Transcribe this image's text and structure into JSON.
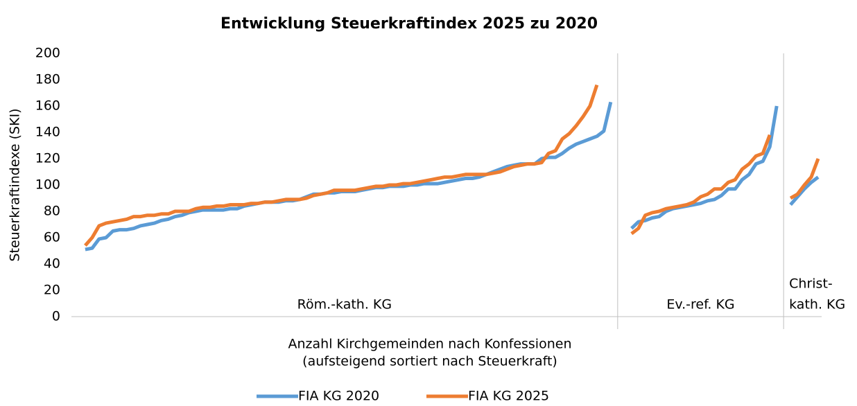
{
  "chart_data": {
    "type": "line",
    "title": "Entwicklung Steuerkraftindex 2025 zu 2020",
    "y_label": "Steuerkraftindexe (SKI)",
    "x_label": [
      "Anzahl Kirchgemeinden nach Konfessionen",
      "(aufsteigend sortiert nach Steuerkraft)"
    ],
    "ylim": [
      0,
      200
    ],
    "yticks": [
      0,
      20,
      40,
      60,
      80,
      100,
      120,
      140,
      160,
      180,
      200
    ],
    "xlim": [
      0,
      108.5
    ],
    "grid": false,
    "legend": "bottom",
    "groups": [
      {
        "label": [
          "Röm.-kath. KG"
        ],
        "range": [
          0,
          79
        ]
      },
      {
        "label": [
          "Ev.-ref. KG"
        ],
        "range": [
          79,
          103
        ]
      },
      {
        "label": [
          "Christ-",
          "kath. KG"
        ],
        "range": [
          103,
          108.5
        ]
      }
    ],
    "x": [
      2,
      3,
      4,
      5,
      6,
      7,
      8,
      9,
      10,
      11,
      12,
      13,
      14,
      15,
      16,
      17,
      18,
      19,
      20,
      21,
      22,
      23,
      24,
      25,
      26,
      27,
      28,
      29,
      30,
      31,
      32,
      33,
      34,
      35,
      36,
      37,
      38,
      39,
      40,
      41,
      42,
      43,
      44,
      45,
      46,
      47,
      48,
      49,
      50,
      51,
      52,
      53,
      54,
      55,
      56,
      57,
      58,
      59,
      60,
      61,
      62,
      63,
      64,
      65,
      66,
      67,
      68,
      69,
      70,
      71,
      72,
      73,
      74,
      75,
      76,
      77,
      78,
      79,
      81,
      82,
      83,
      84,
      85,
      86,
      87,
      88,
      89,
      90,
      91,
      92,
      93,
      94,
      95,
      96,
      97,
      98,
      99,
      100,
      101,
      102,
      103,
      104,
      105,
      106,
      107,
      108
    ],
    "series": [
      {
        "name": "FIA KG 2020",
        "color": "#5b9bd5",
        "values": [
          51,
          52,
          59,
          60,
          65,
          66,
          66,
          67,
          69,
          70,
          71,
          73,
          74,
          76,
          77,
          79,
          80,
          81,
          81,
          81,
          81,
          82,
          82,
          84,
          85,
          86,
          87,
          87,
          87,
          88,
          88,
          89,
          91,
          93,
          93,
          94,
          94,
          95,
          95,
          95,
          96,
          97,
          98,
          98,
          99,
          99,
          99,
          100,
          100,
          101,
          101,
          101,
          102,
          103,
          104,
          105,
          105,
          106,
          108,
          110,
          112,
          114,
          115,
          116,
          116,
          116,
          120,
          121,
          121,
          124,
          128,
          131,
          133,
          135,
          137,
          141,
          163,
          null,
          67,
          72,
          73,
          75,
          76,
          80,
          82,
          83,
          84,
          85,
          86,
          88,
          89,
          92,
          97,
          97,
          104,
          108,
          116,
          118,
          129,
          160,
          null,
          85,
          91,
          97,
          102,
          106
        ]
      },
      {
        "name": "FIA KG 2025",
        "color": "#ed7d31",
        "values": [
          54,
          60,
          69,
          71,
          72,
          73,
          74,
          76,
          76,
          77,
          77,
          78,
          78,
          80,
          80,
          80,
          82,
          83,
          83,
          84,
          84,
          85,
          85,
          85,
          86,
          86,
          87,
          87,
          88,
          89,
          89,
          89,
          90,
          92,
          93,
          94,
          96,
          96,
          96,
          96,
          97,
          98,
          99,
          99,
          100,
          100,
          101,
          101,
          102,
          103,
          104,
          105,
          106,
          106,
          107,
          108,
          108,
          108,
          108,
          109,
          110,
          112,
          114,
          115,
          116,
          116,
          117,
          124,
          126,
          135,
          139,
          145,
          152,
          160,
          176,
          null,
          null,
          null,
          63,
          67,
          77,
          79,
          80,
          82,
          83,
          84,
          85,
          87,
          91,
          93,
          97,
          97,
          102,
          104,
          112,
          116,
          122,
          124,
          138,
          null,
          null,
          90,
          93,
          100,
          106,
          120
        ]
      }
    ]
  }
}
